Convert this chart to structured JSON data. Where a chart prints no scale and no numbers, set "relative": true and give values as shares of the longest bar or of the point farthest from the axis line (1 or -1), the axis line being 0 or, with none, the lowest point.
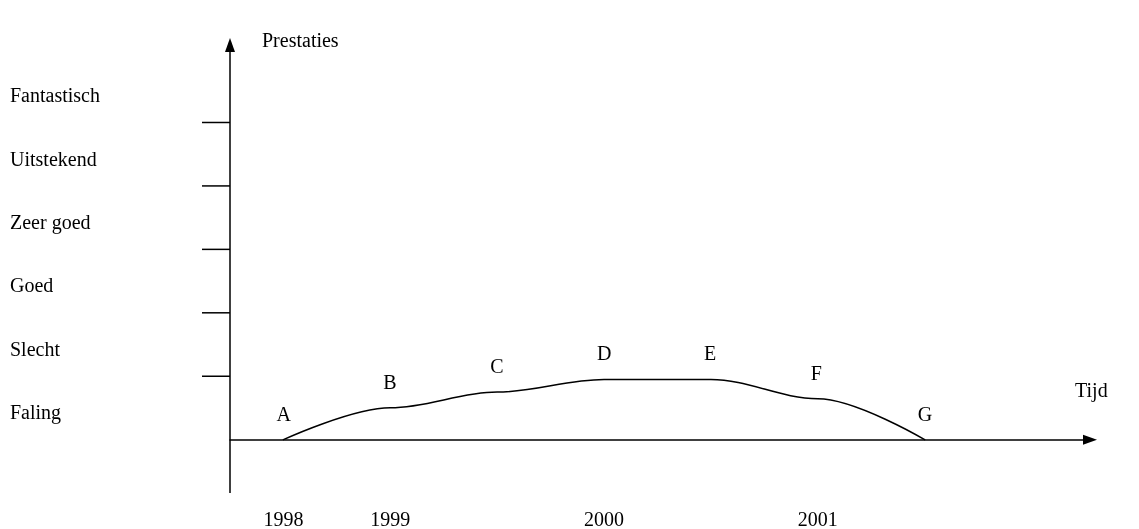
{
  "chart_data": {
    "type": "line",
    "relative": true,
    "xlabel": "Tijd",
    "categories": [
      "1998",
      "1999",
      null,
      "2000",
      null,
      "2001",
      null,
      null
    ],
    "series": [
      {
        "color": "#000000",
        "values": [
          0,
          0.53,
          0.79,
          1,
          1,
          0.68,
          0,
          null
        ]
      }
    ],
    "annotations": [
      "Prestaties",
      "Faling",
      "Slecht",
      "Goed",
      "Zeer goed",
      "Uitstekend",
      "Fantastisch",
      {
        "text": "A",
        "x": "1998",
        "y": 0
      },
      {
        "text": "B",
        "x": "1999",
        "y": 0.53
      },
      {
        "text": "C",
        "y": 0.79
      },
      {
        "text": "D",
        "x": "2000",
        "y": 1
      },
      {
        "text": "E",
        "y": 1
      },
      {
        "text": "F",
        "x": "2001",
        "y": 0.68
      },
      {
        "text": "G",
        "y": 0
      }
    ],
    "marker": "none",
    "line_style": "solid",
    "grid": false
  }
}
